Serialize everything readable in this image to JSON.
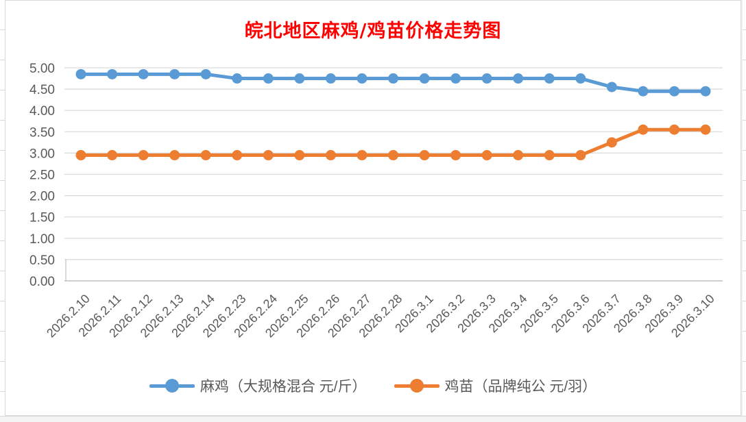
{
  "title": {
    "text": "皖北地区麻鸡/鸡苗价格走势图"
  },
  "chart_data": {
    "type": "line",
    "title": "皖北地区麻鸡/鸡苗价格走势图",
    "title_color": "#FF0000",
    "categories": [
      "2026.2.10",
      "2026.2.11",
      "2026.2.12",
      "2026.2.13",
      "2026.2.14",
      "2026.2.23",
      "2026.2.24",
      "2026.2.25",
      "2026.2.26",
      "2026.2.27",
      "2026.2.28",
      "2026.3.1",
      "2026.3.2",
      "2026.3.3",
      "2026.3.4",
      "2026.3.5",
      "2026.3.6",
      "2026.3.7",
      "2026.3.8",
      "2026.3.9",
      "2026.3.10"
    ],
    "series": [
      {
        "name": "麻鸡（大规格混合 元/斤）",
        "color": "#5B9BD5",
        "marker": "circle",
        "values": [
          4.85,
          4.85,
          4.85,
          4.85,
          4.85,
          4.75,
          4.75,
          4.75,
          4.75,
          4.75,
          4.75,
          4.75,
          4.75,
          4.75,
          4.75,
          4.75,
          4.75,
          4.55,
          4.45,
          4.45,
          4.45
        ]
      },
      {
        "name": "鸡苗（品牌纯公 元/羽）",
        "color": "#ED7D31",
        "marker": "circle",
        "values": [
          2.95,
          2.95,
          2.95,
          2.95,
          2.95,
          2.95,
          2.95,
          2.95,
          2.95,
          2.95,
          2.95,
          2.95,
          2.95,
          2.95,
          2.95,
          2.95,
          2.95,
          3.25,
          3.55,
          3.55,
          3.55
        ]
      }
    ],
    "ylim": [
      0,
      5
    ],
    "ytick_step": 0.5,
    "ytick_labels": [
      "0.00",
      "0.50",
      "1.00",
      "1.50",
      "2.00",
      "2.50",
      "3.00",
      "3.50",
      "4.00",
      "4.50",
      "5.00"
    ],
    "grid": true,
    "gridline_color": "#D9D9D9",
    "axis_label_color": "#595959",
    "legend_position": "bottom",
    "xlabel": "",
    "ylabel": ""
  }
}
